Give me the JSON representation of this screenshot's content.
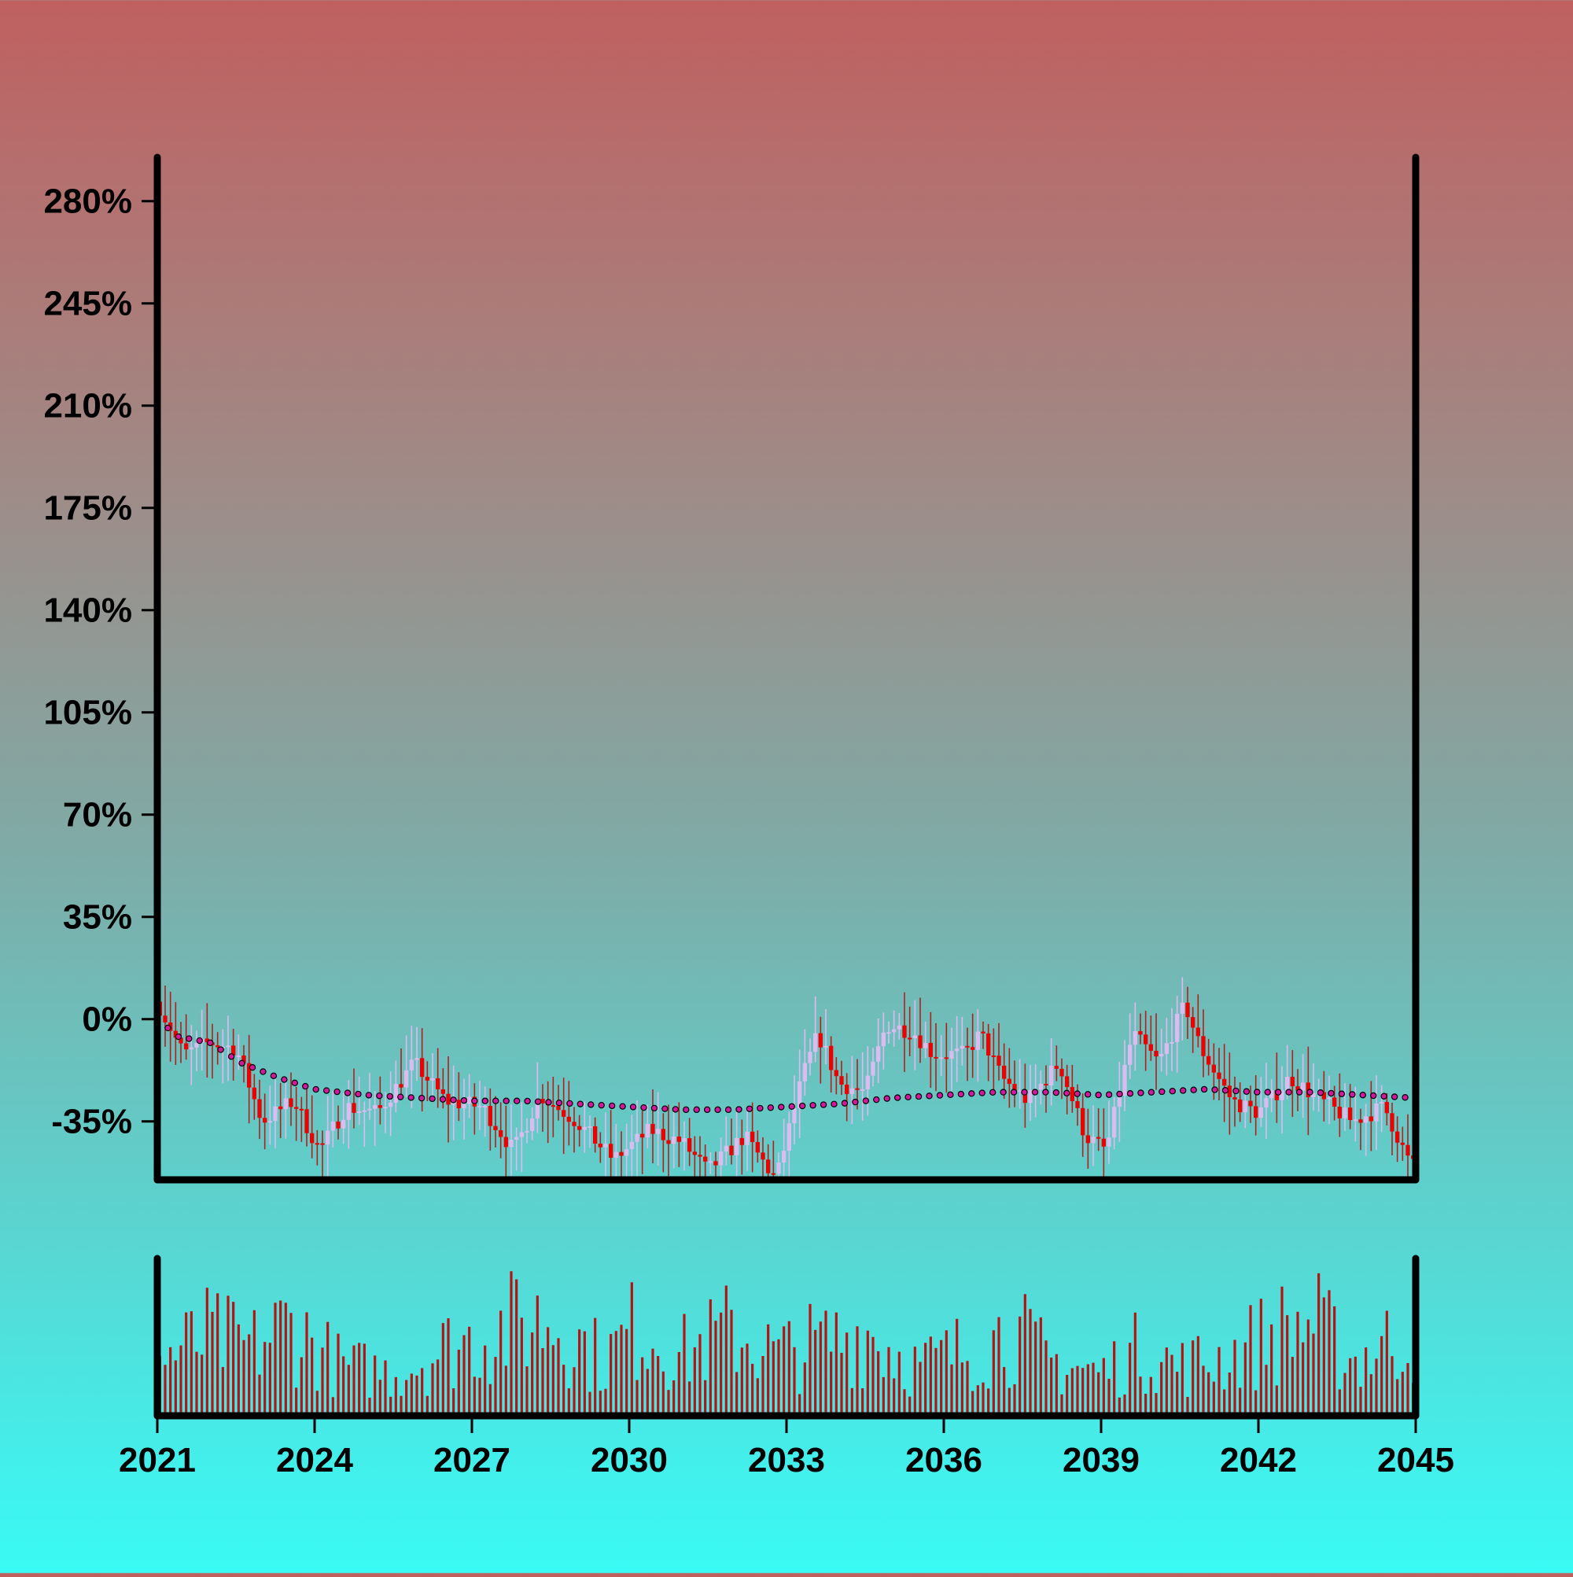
{
  "chart_data": [
    {
      "type": "candlestick",
      "title": "",
      "xlabel": "",
      "ylabel": "",
      "x_range": [
        2021,
        2045
      ],
      "ylim": [
        -55,
        295
      ],
      "y_tick_values": [
        -35,
        0,
        35,
        70,
        105,
        140,
        175,
        210,
        245,
        280
      ],
      "y_tick_labels": [
        "-35%",
        "0%",
        "35%",
        "70%",
        "105%",
        "140%",
        "175%",
        "210%",
        "245%",
        "280%"
      ],
      "x_tick_values": [
        2021,
        2024,
        2027,
        2030,
        2033,
        2036,
        2039,
        2042,
        2045
      ],
      "x_tick_labels": [
        "2021",
        "2024",
        "2027",
        "2030",
        "2033",
        "2036",
        "2039",
        "2042",
        "2045"
      ],
      "price_close_anchors": [
        [
          2021.0,
          6
        ],
        [
          2021.5,
          -12
        ],
        [
          2022.0,
          -8
        ],
        [
          2022.5,
          -10
        ],
        [
          2023.0,
          -35
        ],
        [
          2023.6,
          -28
        ],
        [
          2024.1,
          -45
        ],
        [
          2024.6,
          -30
        ],
        [
          2025.2,
          -32
        ],
        [
          2025.9,
          -15
        ],
        [
          2026.5,
          -28
        ],
        [
          2027.2,
          -30
        ],
        [
          2027.8,
          -45
        ],
        [
          2028.3,
          -26
        ],
        [
          2029.0,
          -35
        ],
        [
          2029.7,
          -48
        ],
        [
          2030.4,
          -38
        ],
        [
          2031.0,
          -42
        ],
        [
          2031.5,
          -52
        ],
        [
          2032.2,
          -40
        ],
        [
          2032.8,
          -55
        ],
        [
          2033.3,
          -20
        ],
        [
          2033.6,
          -5
        ],
        [
          2034.0,
          -22
        ],
        [
          2034.5,
          -25
        ],
        [
          2034.9,
          -2
        ],
        [
          2035.4,
          -4
        ],
        [
          2035.8,
          -12
        ],
        [
          2036.4,
          -12
        ],
        [
          2036.7,
          -5
        ],
        [
          2037.1,
          -20
        ],
        [
          2037.6,
          -28
        ],
        [
          2038.2,
          -15
        ],
        [
          2038.7,
          -40
        ],
        [
          2039.1,
          -45
        ],
        [
          2039.6,
          -5
        ],
        [
          2040.1,
          -15
        ],
        [
          2040.6,
          5
        ],
        [
          2040.9,
          -10
        ],
        [
          2041.5,
          -28
        ],
        [
          2042.0,
          -32
        ],
        [
          2042.6,
          -20
        ],
        [
          2043.2,
          -28
        ],
        [
          2043.8,
          -35
        ],
        [
          2044.4,
          -30
        ],
        [
          2044.9,
          -50
        ]
      ],
      "moving_average_anchors": [
        [
          2021.0,
          0
        ],
        [
          2021.4,
          -6
        ],
        [
          2022.0,
          -8
        ],
        [
          2022.6,
          -15
        ],
        [
          2023.3,
          -20
        ],
        [
          2024.0,
          -24
        ],
        [
          2025.0,
          -26
        ],
        [
          2026.0,
          -27
        ],
        [
          2027.0,
          -28
        ],
        [
          2028.0,
          -28
        ],
        [
          2029.0,
          -29
        ],
        [
          2030.0,
          -30
        ],
        [
          2031.0,
          -31
        ],
        [
          2032.0,
          -31
        ],
        [
          2033.0,
          -30
        ],
        [
          2034.0,
          -29
        ],
        [
          2035.0,
          -27
        ],
        [
          2036.0,
          -26
        ],
        [
          2037.0,
          -25
        ],
        [
          2038.0,
          -25
        ],
        [
          2039.0,
          -26
        ],
        [
          2040.0,
          -25
        ],
        [
          2041.0,
          -24
        ],
        [
          2042.0,
          -25
        ],
        [
          2043.0,
          -25
        ],
        [
          2044.0,
          -26
        ],
        [
          2045.0,
          -27
        ]
      ],
      "bar_count": 240,
      "grid": false,
      "up_color": "#dcbcf0",
      "down_color": "#ee0000",
      "ma_marker_fill": "#d4189c",
      "ma_marker_edge": "#000000"
    },
    {
      "type": "bar",
      "title": "",
      "ylim": [
        0,
        100
      ],
      "volume_level_anchors": [
        [
          2021.0,
          45
        ],
        [
          2022.0,
          65
        ],
        [
          2022.8,
          55
        ],
        [
          2023.5,
          75
        ],
        [
          2024.5,
          40
        ],
        [
          2025.5,
          35
        ],
        [
          2026.5,
          55
        ],
        [
          2027.5,
          70
        ],
        [
          2028.5,
          80
        ],
        [
          2029.5,
          45
        ],
        [
          2030.2,
          75
        ],
        [
          2031.0,
          50
        ],
        [
          2032.0,
          70
        ],
        [
          2032.8,
          50
        ],
        [
          2033.8,
          60
        ],
        [
          2034.5,
          70
        ],
        [
          2035.5,
          40
        ],
        [
          2036.5,
          55
        ],
        [
          2037.3,
          70
        ],
        [
          2038.0,
          45
        ],
        [
          2039.0,
          35
        ],
        [
          2039.8,
          55
        ],
        [
          2040.5,
          40
        ],
        [
          2041.5,
          50
        ],
        [
          2042.2,
          65
        ],
        [
          2043.0,
          78
        ],
        [
          2043.8,
          45
        ],
        [
          2044.5,
          60
        ],
        [
          2045.0,
          70
        ]
      ],
      "bar_color": "#b41414"
    }
  ]
}
